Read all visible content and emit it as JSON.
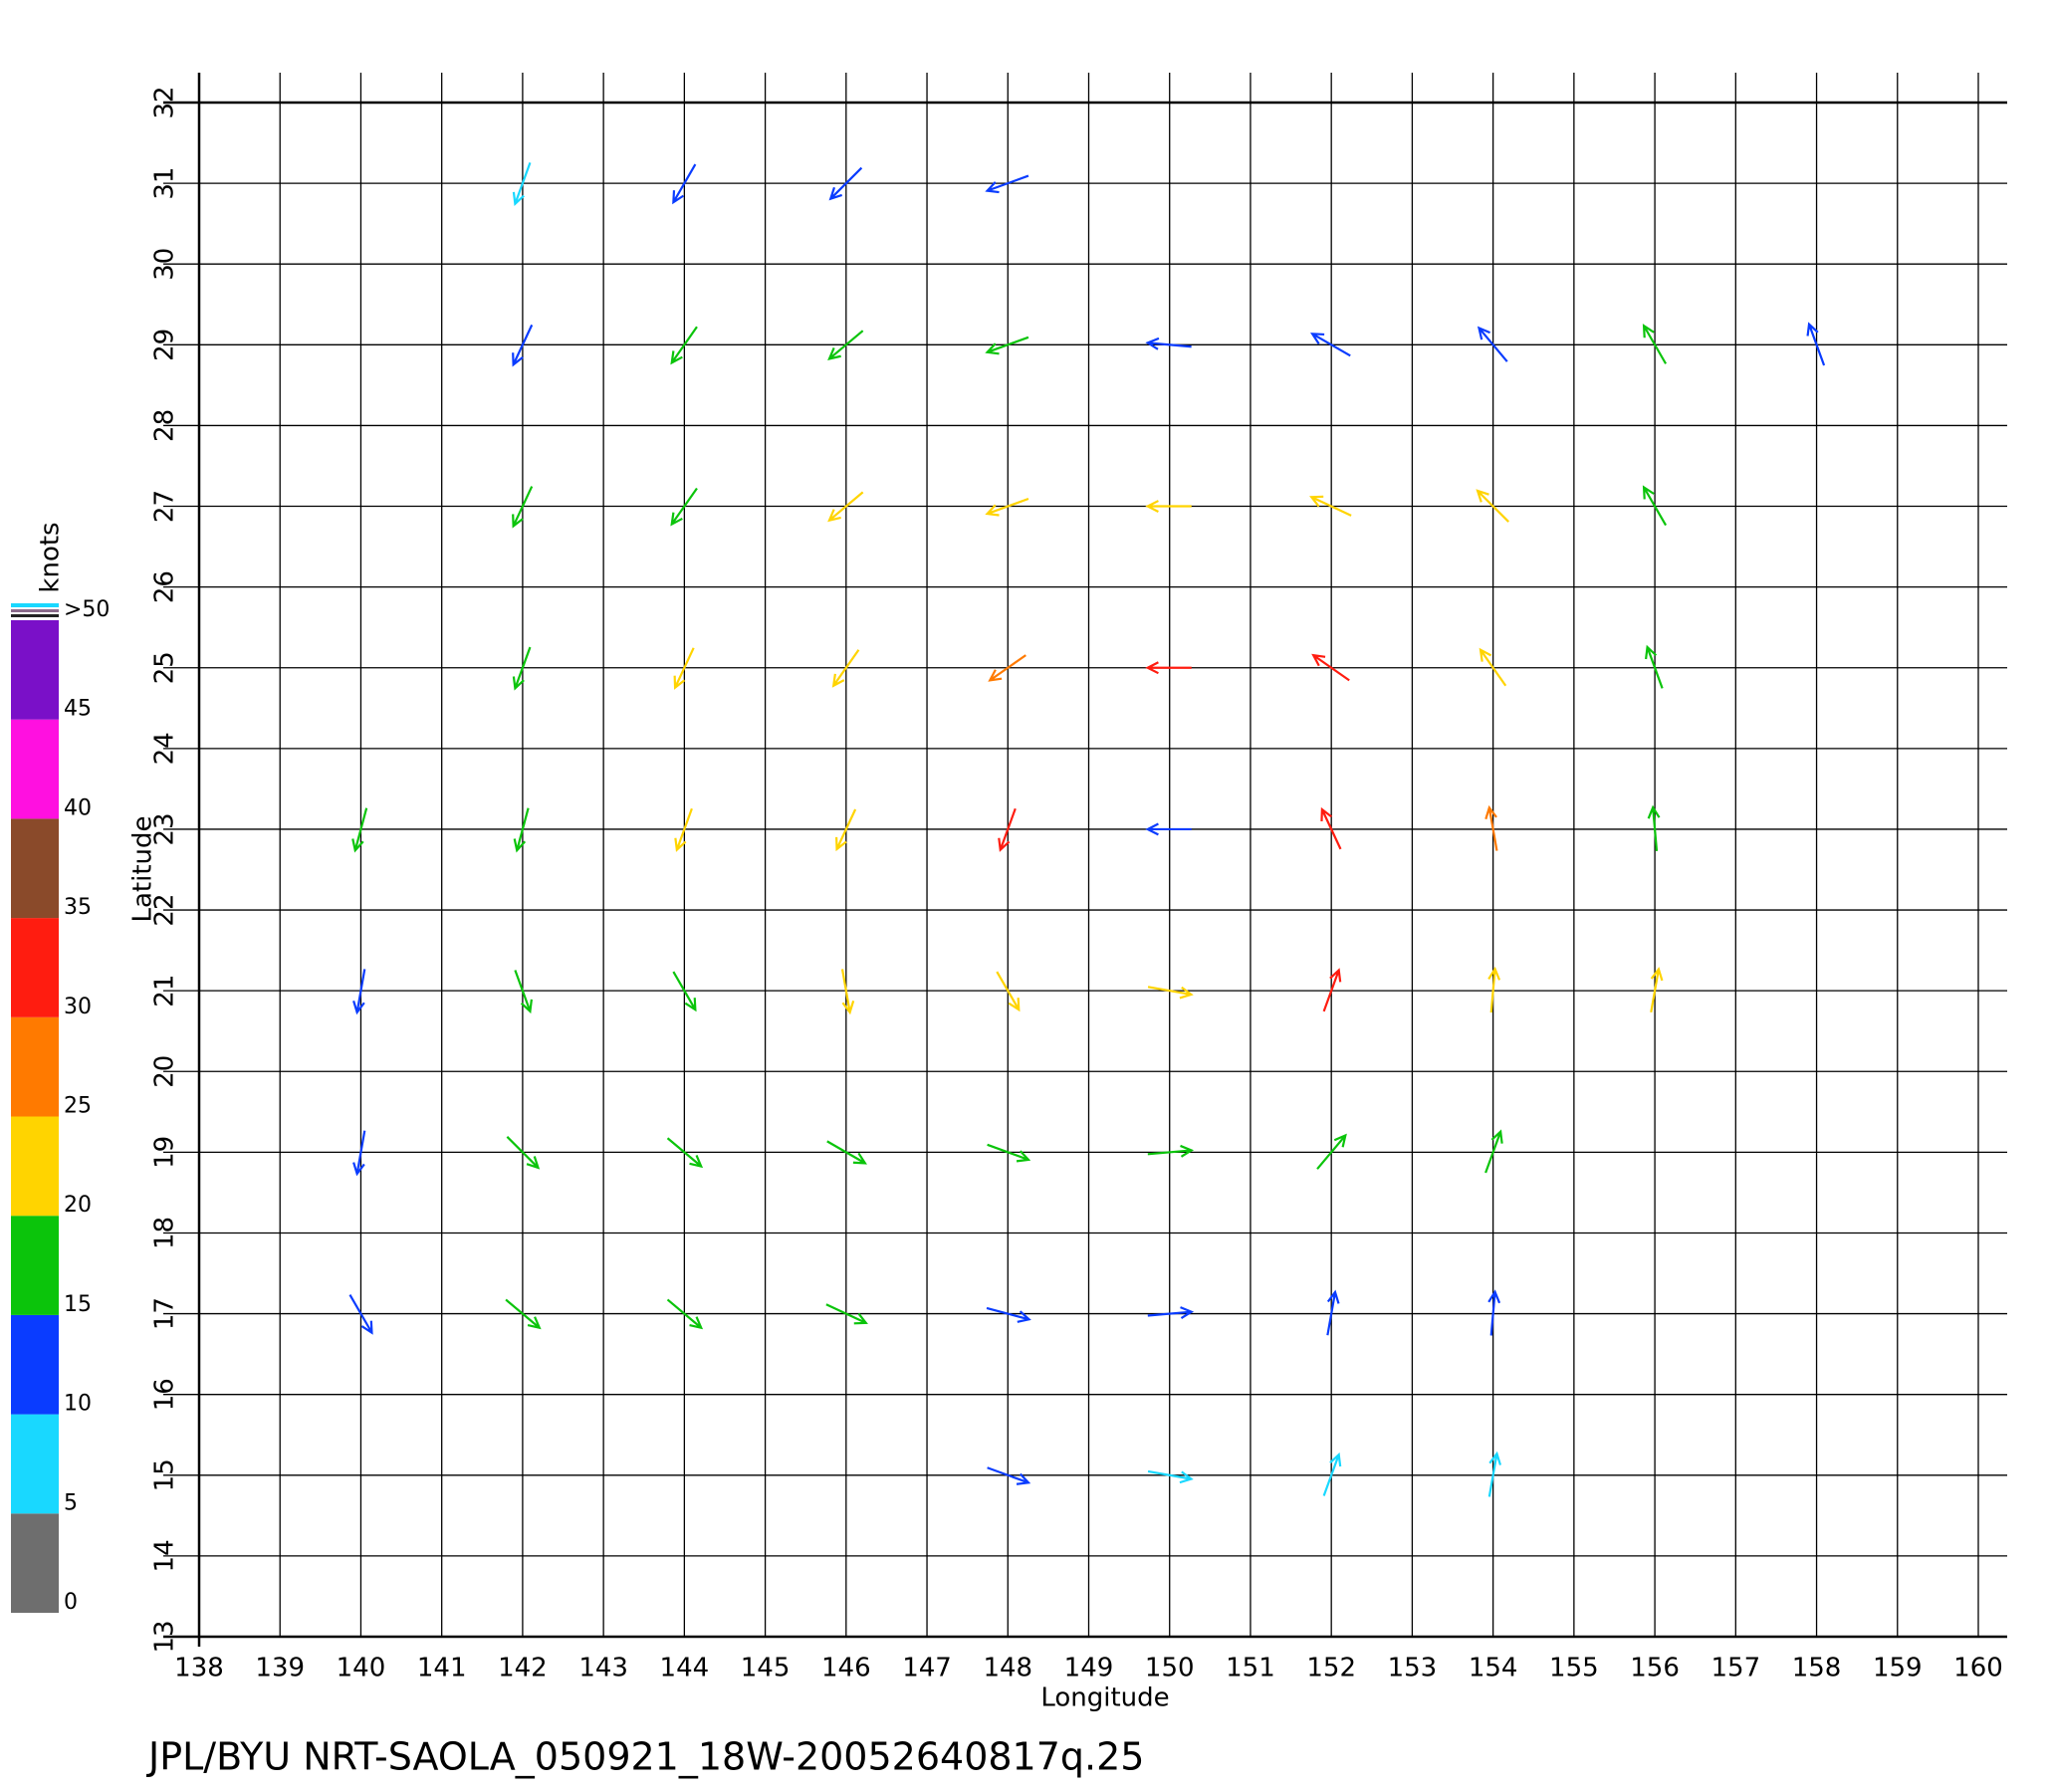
{
  "chart_data": {
    "type": "vector",
    "title": "JPL/BYU  NRT-SAOLA_050921_18W-20052640817q.25",
    "x_label": "Longitude",
    "y_label": "Latitude",
    "xlim": [
      138,
      160
    ],
    "ylim": [
      13,
      32
    ],
    "xticks": [
      138,
      139,
      140,
      141,
      142,
      143,
      144,
      145,
      146,
      147,
      148,
      149,
      150,
      151,
      152,
      153,
      154,
      155,
      156,
      157,
      158,
      159,
      160
    ],
    "yticks": [
      13,
      14,
      15,
      16,
      17,
      18,
      19,
      20,
      21,
      22,
      23,
      24,
      25,
      26,
      27,
      28,
      29,
      30,
      31,
      32
    ],
    "grid": true,
    "vectors": {
      "x": [
        142,
        144,
        146,
        148,
        142,
        144,
        146,
        148,
        150,
        152,
        154,
        156,
        158,
        142,
        144,
        146,
        148,
        150,
        152,
        154,
        156,
        142,
        144,
        146,
        148,
        150,
        152,
        154,
        156,
        140,
        142,
        144,
        146,
        148,
        150,
        152,
        154,
        156,
        140,
        142,
        144,
        146,
        148,
        150,
        152,
        154,
        156,
        140,
        142,
        144,
        146,
        148,
        150,
        152,
        154,
        140,
        142,
        144,
        146,
        148,
        150,
        152,
        154,
        148,
        150,
        152,
        154
      ],
      "y": [
        31,
        31,
        31,
        31,
        29,
        29,
        29,
        29,
        29,
        29,
        29,
        29,
        29,
        27,
        27,
        27,
        27,
        27,
        27,
        27,
        27,
        25,
        25,
        25,
        25,
        25,
        25,
        25,
        25,
        23,
        23,
        23,
        23,
        23,
        23,
        23,
        23,
        23,
        21,
        21,
        21,
        21,
        21,
        21,
        21,
        21,
        21,
        19,
        19,
        19,
        19,
        19,
        19,
        19,
        19,
        17,
        17,
        17,
        17,
        17,
        17,
        17,
        17,
        15,
        15,
        15,
        15
      ],
      "speed": [
        9,
        10,
        12,
        12,
        14,
        16,
        17,
        16,
        14,
        14,
        12,
        15,
        12,
        17,
        19,
        20,
        22,
        23,
        22,
        21,
        18,
        18,
        21,
        22,
        27,
        31,
        30,
        24,
        17,
        17,
        19,
        21,
        22,
        33,
        14,
        33,
        26,
        19,
        14,
        16,
        18,
        22,
        22,
        24,
        30,
        24,
        22,
        13,
        16,
        16,
        19,
        19,
        18,
        17,
        15,
        12,
        15,
        15,
        15,
        13,
        13,
        11,
        11,
        11,
        8,
        8,
        7
      ],
      "direction": [
        200,
        210,
        225,
        250,
        205,
        215,
        230,
        250,
        275,
        300,
        320,
        330,
        340,
        205,
        215,
        230,
        250,
        270,
        295,
        315,
        330,
        200,
        205,
        215,
        235,
        270,
        305,
        325,
        340,
        195,
        195,
        200,
        205,
        200,
        270,
        335,
        350,
        355,
        190,
        160,
        150,
        170,
        150,
        100,
        20,
        5,
        10,
        190,
        135,
        130,
        120,
        110,
        85,
        40,
        20,
        150,
        130,
        130,
        115,
        105,
        85,
        10,
        5,
        110,
        100,
        20,
        10
      ]
    },
    "colorbar": {
      "label": "knots",
      "ticks": [
        0,
        5,
        10,
        15,
        20,
        25,
        30,
        35,
        40,
        45,
        {
          "value": 50,
          "label": ">50"
        }
      ],
      "colors": [
        "#6e6e6e",
        "#19d8ff",
        "#0a3cff",
        "#0bc40b",
        "#ffd400",
        "#ff7a00",
        "#ff1c10",
        "#8a4a2a",
        "#ff10e0",
        "#7a10c8"
      ]
    }
  }
}
